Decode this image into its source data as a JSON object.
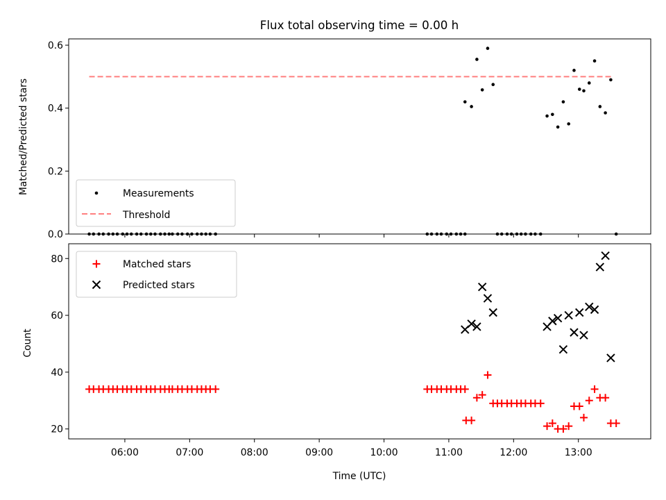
{
  "figure": {
    "title": "Flux total observing time = 0.00 h",
    "xlabel": "Time (UTC)"
  },
  "colors": {
    "measurements": "#000000",
    "threshold": "#ff7f7f",
    "matched": "#ff0000",
    "predicted": "#000000"
  },
  "chart_data": [
    {
      "type": "scatter",
      "ylabel": "Matched/Predicted stars",
      "xlim": [
        "05:08",
        "14:07"
      ],
      "ylim": [
        0,
        0.62
      ],
      "y_ticks": [
        "0.0",
        "0.2",
        "0.4",
        "0.6"
      ],
      "grid": false,
      "legend_position": "lower-left",
      "legend": [
        "Measurements",
        "Threshold"
      ],
      "threshold": {
        "name": "Threshold",
        "y": 0.5,
        "x_range": [
          "05:27",
          "13:31"
        ]
      },
      "series": [
        {
          "name": "Measurements",
          "points": [
            [
              "05:27",
              0
            ],
            [
              "05:31",
              0
            ],
            [
              "05:36",
              0
            ],
            [
              "05:40",
              0
            ],
            [
              "05:45",
              0
            ],
            [
              "05:49",
              0
            ],
            [
              "05:53",
              0
            ],
            [
              "05:58",
              0
            ],
            [
              "06:02",
              0
            ],
            [
              "06:06",
              0
            ],
            [
              "06:11",
              0
            ],
            [
              "06:15",
              0
            ],
            [
              "06:20",
              0
            ],
            [
              "06:24",
              0
            ],
            [
              "06:28",
              0
            ],
            [
              "06:33",
              0
            ],
            [
              "06:37",
              0
            ],
            [
              "06:41",
              0
            ],
            [
              "06:44",
              0
            ],
            [
              "06:49",
              0
            ],
            [
              "06:53",
              0
            ],
            [
              "06:58",
              0
            ],
            [
              "07:02",
              0
            ],
            [
              "07:07",
              0
            ],
            [
              "07:11",
              0
            ],
            [
              "07:15",
              0
            ],
            [
              "07:19",
              0
            ],
            [
              "07:24",
              0
            ],
            [
              "10:40",
              0
            ],
            [
              "10:44",
              0
            ],
            [
              "10:49",
              0
            ],
            [
              "10:53",
              0
            ],
            [
              "10:58",
              0
            ],
            [
              "11:02",
              0
            ],
            [
              "11:07",
              0
            ],
            [
              "11:11",
              0
            ],
            [
              "11:15",
              0
            ],
            [
              "11:15",
              0.42
            ],
            [
              "11:21",
              0.405
            ],
            [
              "11:26",
              0.555
            ],
            [
              "11:31",
              0.458
            ],
            [
              "11:36",
              0.59
            ],
            [
              "11:41",
              0.475
            ],
            [
              "11:45",
              0
            ],
            [
              "11:49",
              0
            ],
            [
              "11:54",
              0
            ],
            [
              "11:58",
              0
            ],
            [
              "12:03",
              0
            ],
            [
              "12:07",
              0
            ],
            [
              "12:11",
              0
            ],
            [
              "12:16",
              0
            ],
            [
              "12:20",
              0
            ],
            [
              "12:25",
              0
            ],
            [
              "12:31",
              0.375
            ],
            [
              "12:36",
              0.38
            ],
            [
              "12:41",
              0.34
            ],
            [
              "12:46",
              0.42
            ],
            [
              "12:51",
              0.35
            ],
            [
              "12:56",
              0.52
            ],
            [
              "13:01",
              0.46
            ],
            [
              "13:05",
              0.455
            ],
            [
              "13:10",
              0.48
            ],
            [
              "13:15",
              0.55
            ],
            [
              "13:20",
              0.405
            ],
            [
              "13:25",
              0.385
            ],
            [
              "13:30",
              0.49
            ],
            [
              "13:35",
              0
            ]
          ]
        }
      ]
    },
    {
      "type": "scatter",
      "ylabel": "Count",
      "xlim": [
        "05:08",
        "14:07"
      ],
      "ylim": [
        16.5,
        85.2
      ],
      "y_ticks": [
        "20",
        "40",
        "60",
        "80"
      ],
      "x_ticks": [
        "06:00",
        "07:00",
        "08:00",
        "09:00",
        "10:00",
        "11:00",
        "12:00",
        "13:00"
      ],
      "grid": false,
      "legend_position": "upper-left",
      "legend": [
        "Matched stars",
        "Predicted stars"
      ],
      "series": [
        {
          "name": "Matched stars",
          "points": [
            [
              "05:27",
              34
            ],
            [
              "05:31",
              34
            ],
            [
              "05:36",
              34
            ],
            [
              "05:40",
              34
            ],
            [
              "05:45",
              34
            ],
            [
              "05:49",
              34
            ],
            [
              "05:53",
              34
            ],
            [
              "05:58",
              34
            ],
            [
              "06:02",
              34
            ],
            [
              "06:06",
              34
            ],
            [
              "06:11",
              34
            ],
            [
              "06:15",
              34
            ],
            [
              "06:20",
              34
            ],
            [
              "06:24",
              34
            ],
            [
              "06:28",
              34
            ],
            [
              "06:33",
              34
            ],
            [
              "06:37",
              34
            ],
            [
              "06:41",
              34
            ],
            [
              "06:44",
              34
            ],
            [
              "06:49",
              34
            ],
            [
              "06:53",
              34
            ],
            [
              "06:58",
              34
            ],
            [
              "07:02",
              34
            ],
            [
              "07:07",
              34
            ],
            [
              "07:11",
              34
            ],
            [
              "07:15",
              34
            ],
            [
              "07:19",
              34
            ],
            [
              "07:24",
              34
            ],
            [
              "10:40",
              34
            ],
            [
              "10:44",
              34
            ],
            [
              "10:49",
              34
            ],
            [
              "10:53",
              34
            ],
            [
              "10:58",
              34
            ],
            [
              "11:02",
              34
            ],
            [
              "11:07",
              34
            ],
            [
              "11:11",
              34
            ],
            [
              "11:15",
              34
            ],
            [
              "11:16",
              23
            ],
            [
              "11:21",
              23
            ],
            [
              "11:26",
              31
            ],
            [
              "11:31",
              32
            ],
            [
              "11:36",
              39
            ],
            [
              "11:41",
              29
            ],
            [
              "11:45",
              29
            ],
            [
              "11:49",
              29
            ],
            [
              "11:54",
              29
            ],
            [
              "11:58",
              29
            ],
            [
              "12:03",
              29
            ],
            [
              "12:07",
              29
            ],
            [
              "12:11",
              29
            ],
            [
              "12:16",
              29
            ],
            [
              "12:20",
              29
            ],
            [
              "12:25",
              29
            ],
            [
              "12:31",
              21
            ],
            [
              "12:36",
              22
            ],
            [
              "12:41",
              20
            ],
            [
              "12:46",
              20
            ],
            [
              "12:51",
              21
            ],
            [
              "12:56",
              28
            ],
            [
              "13:01",
              28
            ],
            [
              "13:05",
              24
            ],
            [
              "13:10",
              30
            ],
            [
              "13:15",
              34
            ],
            [
              "13:20",
              31
            ],
            [
              "13:25",
              31
            ],
            [
              "13:30",
              22
            ],
            [
              "13:35",
              22
            ]
          ]
        },
        {
          "name": "Predicted stars",
          "points": [
            [
              "11:15",
              55
            ],
            [
              "11:21",
              57
            ],
            [
              "11:26",
              56
            ],
            [
              "11:31",
              70
            ],
            [
              "11:36",
              66
            ],
            [
              "11:41",
              61
            ],
            [
              "12:31",
              56
            ],
            [
              "12:36",
              58
            ],
            [
              "12:41",
              59
            ],
            [
              "12:46",
              48
            ],
            [
              "12:51",
              60
            ],
            [
              "12:56",
              54
            ],
            [
              "13:01",
              61
            ],
            [
              "13:05",
              53
            ],
            [
              "13:10",
              63
            ],
            [
              "13:15",
              62
            ],
            [
              "13:20",
              77
            ],
            [
              "13:25",
              81
            ],
            [
              "13:30",
              45
            ]
          ]
        }
      ]
    }
  ]
}
